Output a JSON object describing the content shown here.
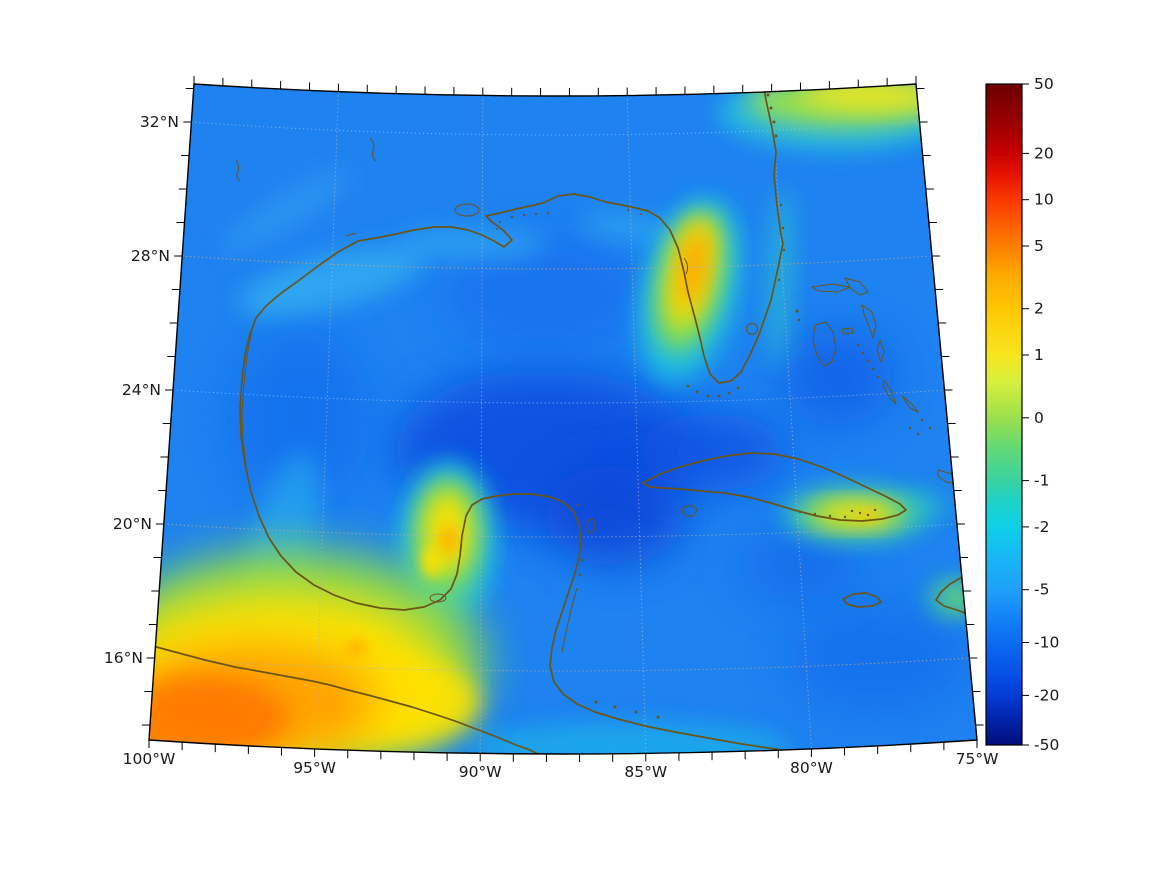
{
  "figure": {
    "kind": "geographic heatmap figure",
    "title": "",
    "description": "Color-shaded anomaly field over the Gulf of Mexico, Florida, Yucatan, Cuba and the western Caribbean on a conic-projection map with dotted graticule and a nonlinear (symlog) jet colorbar."
  },
  "axes": {
    "lon_labels": [
      "100°W",
      "95°W",
      "90°W",
      "85°W",
      "80°W",
      "75°W"
    ],
    "lat_labels": [
      "32°N",
      "28°N",
      "24°N",
      "20°N",
      "16°N"
    ]
  },
  "colorbar": {
    "labels": [
      "50",
      "20",
      "10",
      "5",
      "2",
      "1",
      "0",
      "-1",
      "-2",
      "-5",
      "-10",
      "-20",
      "-50"
    ],
    "min": -50,
    "max": 50,
    "scale": "symlog",
    "colormap": "jet (dark red, red, orange, yellow, green, cyan, blue, dark blue)"
  },
  "chart_data": {
    "type": "heatmap",
    "region": "Gulf of Mexico, Florida, Yucatan Peninsula, Cuba, Bahamas, western Caribbean",
    "projection": "conic (meridians converge upward, parallels curve)",
    "x_axis": {
      "label": "longitude",
      "ticks": [
        "100°W",
        "95°W",
        "90°W",
        "85°W",
        "80°W",
        "75°W"
      ]
    },
    "y_axis": {
      "label": "latitude",
      "ticks": [
        "32°N",
        "28°N",
        "24°N",
        "20°N",
        "16°N"
      ]
    },
    "color_axis": {
      "ticks": [
        50,
        20,
        10,
        5,
        2,
        1,
        0,
        -1,
        -2,
        -5,
        -10,
        -20,
        -50
      ],
      "range": [
        -50,
        50
      ],
      "scale": "symlog",
      "colormap": "jet"
    },
    "field_summary": [
      {
        "area": "most open ocean and land background",
        "value_range": "-2 to -10 (blue)"
      },
      {
        "area": "central Gulf of Mexico deep water",
        "value_range": "-10 to -20 (deep blue)"
      },
      {
        "area": "Yucatan Channel and north of Cuba",
        "value_range": "-10 to -20 (deep blue)"
      },
      {
        "area": "southern Mexico / Pacific coast (bottom-left corner)",
        "value_range": "+2 to +10 (yellow-orange maximum)"
      },
      {
        "area": "west Florida shelf near Tampa",
        "value_range": "+1 to +5 (elongated yellow-orange maximum)"
      },
      {
        "area": "northwest Yucatan shelf (Campeche)",
        "value_range": "+1 to +2 (yellow maximum)"
      },
      {
        "area": "southeast Cuba",
        "value_range": "+1 to +2 (yellow band)"
      },
      {
        "area": "Atlantic coastal band, top-right edge",
        "value_range": "0 to +1 (yellow-green band)"
      },
      {
        "area": "northern Gulf coastal shelf (Texas-Louisiana)",
        "value_range": "-2 to -5 (lighter cyan-blue fringe)"
      }
    ],
    "grid": "dotted gray graticule every 5 deg longitude / 4 deg latitude",
    "legend_position": "vertical colorbar at right"
  }
}
